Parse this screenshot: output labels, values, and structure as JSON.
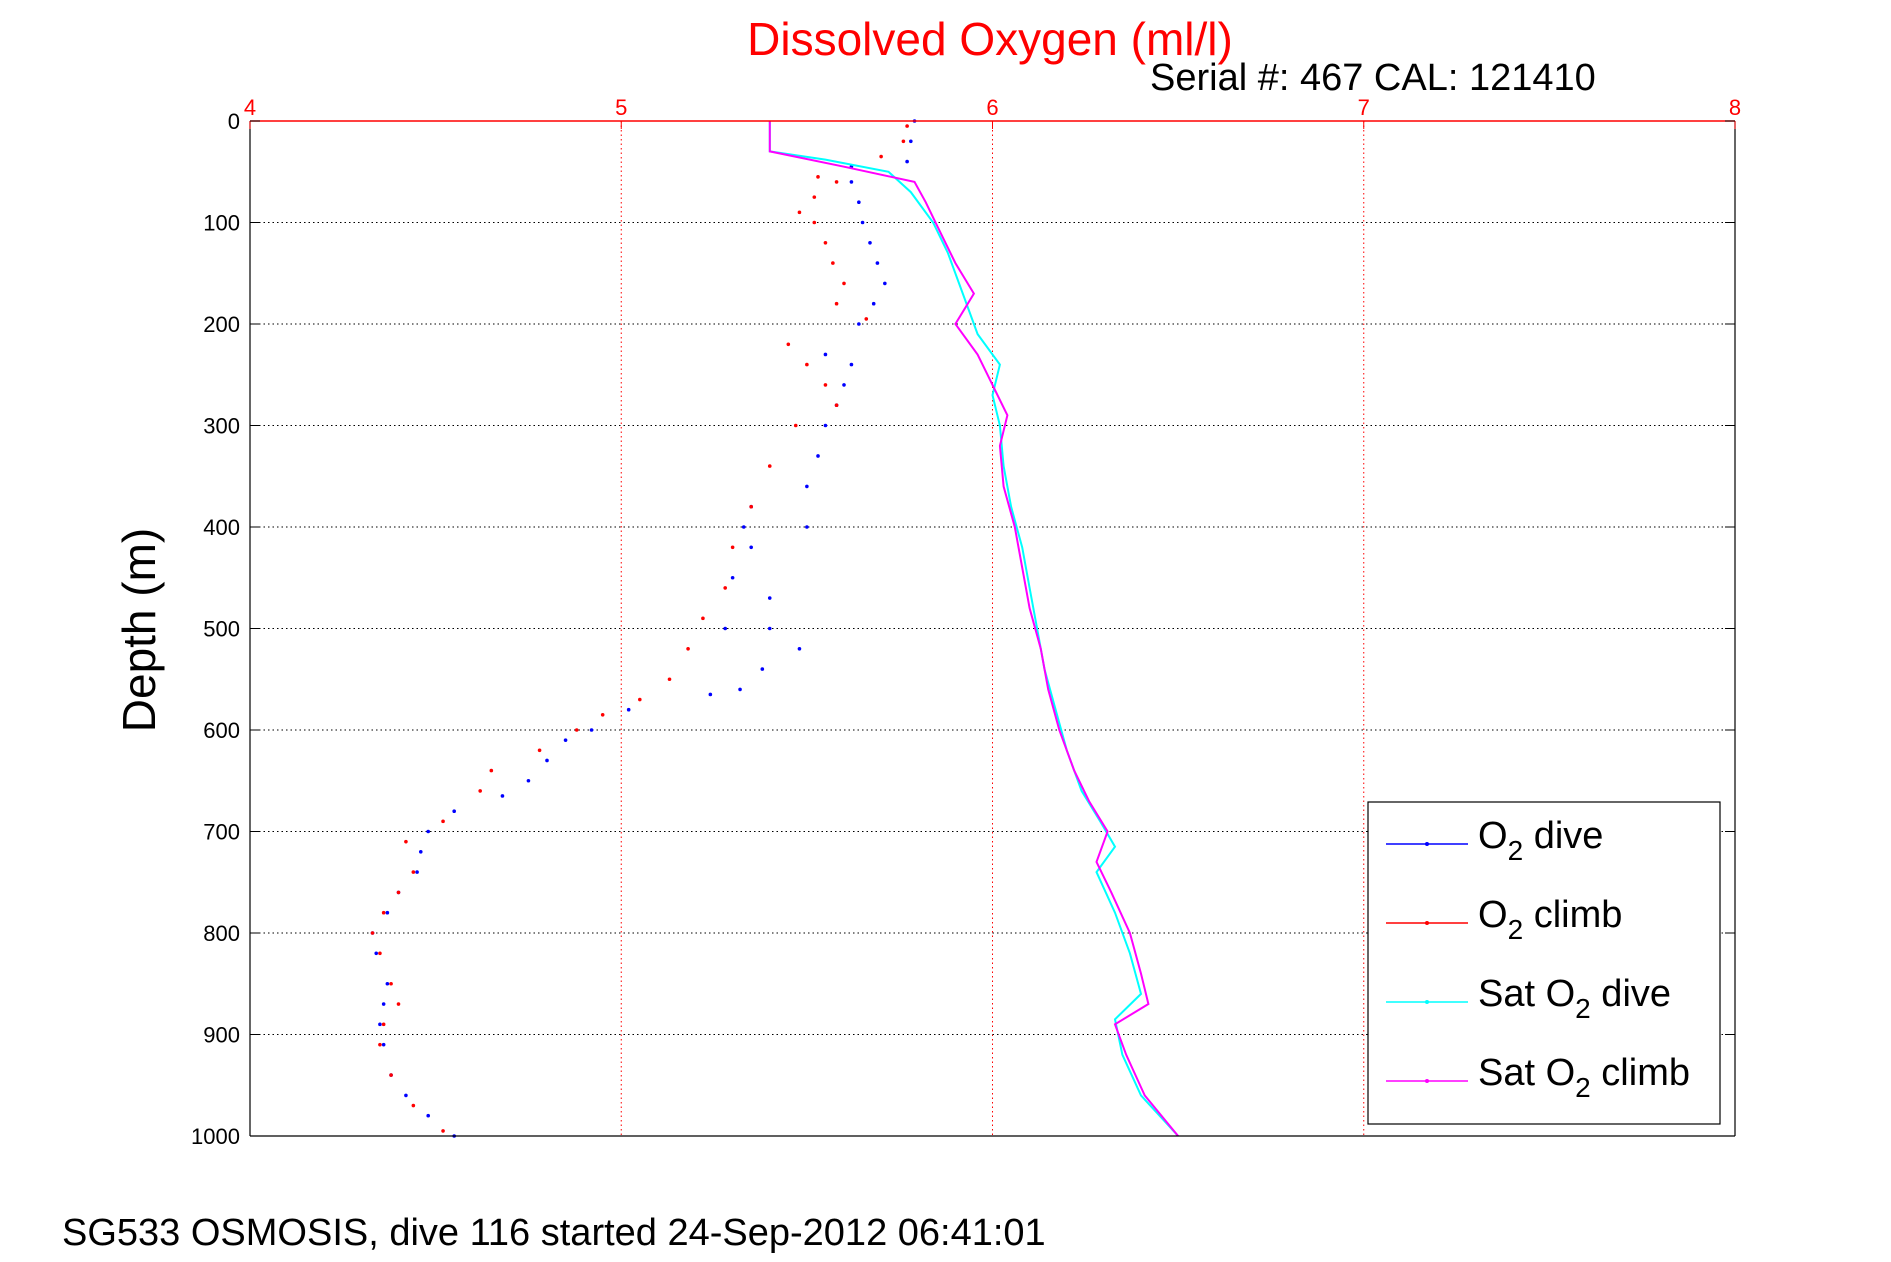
{
  "footer": "SG533 OSMOSIS, dive 116 started 24-Sep-2012 06:41:01",
  "chart_data": {
    "type": "scatter",
    "title": "Dissolved Oxygen (ml/l)",
    "subtitle": "Serial #: 467  CAL: 121410",
    "xlabel": "",
    "ylabel": "Depth (m)",
    "xlim": [
      4,
      8
    ],
    "ylim": [
      0,
      1000
    ],
    "y_reversed": true,
    "x_axis_position": "top",
    "xticks": [
      4,
      5,
      6,
      7,
      8
    ],
    "yticks": [
      0,
      100,
      200,
      300,
      400,
      500,
      600,
      700,
      800,
      900,
      1000
    ],
    "grid": true,
    "legend_position": "bottom-right",
    "colors": {
      "axis_top": "#ff0000",
      "grid_x": "#ff0000",
      "grid_y": "#000000"
    },
    "series": [
      {
        "name": "O2 dive",
        "color": "#0000ff",
        "style": "points",
        "points": [
          [
            5.79,
            0
          ],
          [
            5.78,
            20
          ],
          [
            5.77,
            40
          ],
          [
            5.62,
            45
          ],
          [
            5.62,
            60
          ],
          [
            5.64,
            80
          ],
          [
            5.65,
            100
          ],
          [
            5.67,
            120
          ],
          [
            5.69,
            140
          ],
          [
            5.71,
            160
          ],
          [
            5.68,
            180
          ],
          [
            5.64,
            200
          ],
          [
            5.55,
            230
          ],
          [
            5.62,
            240
          ],
          [
            5.6,
            260
          ],
          [
            5.58,
            280
          ],
          [
            5.55,
            300
          ],
          [
            5.53,
            330
          ],
          [
            5.5,
            360
          ],
          [
            5.35,
            380
          ],
          [
            5.33,
            400
          ],
          [
            5.5,
            400
          ],
          [
            5.35,
            420
          ],
          [
            5.3,
            450
          ],
          [
            5.4,
            470
          ],
          [
            5.28,
            500
          ],
          [
            5.4,
            500
          ],
          [
            5.48,
            520
          ],
          [
            5.38,
            540
          ],
          [
            5.32,
            560
          ],
          [
            5.24,
            565
          ],
          [
            5.02,
            580
          ],
          [
            4.92,
            600
          ],
          [
            4.85,
            610
          ],
          [
            4.8,
            630
          ],
          [
            4.75,
            650
          ],
          [
            4.68,
            665
          ],
          [
            4.55,
            680
          ],
          [
            4.48,
            700
          ],
          [
            4.46,
            720
          ],
          [
            4.45,
            740
          ],
          [
            4.4,
            760
          ],
          [
            4.37,
            780
          ],
          [
            4.33,
            800
          ],
          [
            4.34,
            820
          ],
          [
            4.37,
            850
          ],
          [
            4.36,
            870
          ],
          [
            4.35,
            890
          ],
          [
            4.36,
            910
          ],
          [
            4.38,
            940
          ],
          [
            4.42,
            960
          ],
          [
            4.48,
            980
          ],
          [
            4.55,
            1000
          ]
        ]
      },
      {
        "name": "O2 climb",
        "color": "#ff0000",
        "style": "points",
        "points": [
          [
            5.77,
            5
          ],
          [
            5.76,
            20
          ],
          [
            5.7,
            35
          ],
          [
            5.53,
            55
          ],
          [
            5.58,
            60
          ],
          [
            5.52,
            75
          ],
          [
            5.48,
            90
          ],
          [
            5.52,
            100
          ],
          [
            5.55,
            120
          ],
          [
            5.57,
            140
          ],
          [
            5.6,
            160
          ],
          [
            5.58,
            180
          ],
          [
            5.66,
            195
          ],
          [
            5.45,
            220
          ],
          [
            5.5,
            240
          ],
          [
            5.55,
            260
          ],
          [
            5.58,
            280
          ],
          [
            5.47,
            300
          ],
          [
            5.4,
            340
          ],
          [
            5.35,
            380
          ],
          [
            5.3,
            420
          ],
          [
            5.28,
            460
          ],
          [
            5.22,
            490
          ],
          [
            5.18,
            520
          ],
          [
            5.13,
            550
          ],
          [
            5.05,
            570
          ],
          [
            4.95,
            585
          ],
          [
            4.88,
            600
          ],
          [
            4.78,
            620
          ],
          [
            4.65,
            640
          ],
          [
            4.62,
            660
          ],
          [
            4.52,
            690
          ],
          [
            4.42,
            710
          ],
          [
            4.44,
            740
          ],
          [
            4.4,
            760
          ],
          [
            4.36,
            780
          ],
          [
            4.33,
            800
          ],
          [
            4.35,
            820
          ],
          [
            4.38,
            850
          ],
          [
            4.4,
            870
          ],
          [
            4.36,
            890
          ],
          [
            4.35,
            910
          ],
          [
            4.38,
            940
          ],
          [
            4.44,
            970
          ],
          [
            4.52,
            995
          ]
        ]
      },
      {
        "name": "Sat O2 dive",
        "color": "#00ffff",
        "style": "line",
        "points": [
          [
            5.4,
            0
          ],
          [
            5.4,
            30
          ],
          [
            5.55,
            38
          ],
          [
            5.72,
            50
          ],
          [
            5.78,
            70
          ],
          [
            5.84,
            100
          ],
          [
            5.88,
            130
          ],
          [
            5.92,
            170
          ],
          [
            5.94,
            190
          ],
          [
            5.96,
            210
          ],
          [
            6.02,
            240
          ],
          [
            6.0,
            270
          ],
          [
            6.02,
            300
          ],
          [
            6.03,
            340
          ],
          [
            6.05,
            380
          ],
          [
            6.08,
            420
          ],
          [
            6.1,
            460
          ],
          [
            6.12,
            500
          ],
          [
            6.14,
            540
          ],
          [
            6.17,
            580
          ],
          [
            6.2,
            620
          ],
          [
            6.24,
            660
          ],
          [
            6.29,
            690
          ],
          [
            6.33,
            715
          ],
          [
            6.28,
            740
          ],
          [
            6.33,
            780
          ],
          [
            6.37,
            820
          ],
          [
            6.4,
            860
          ],
          [
            6.33,
            885
          ],
          [
            6.35,
            920
          ],
          [
            6.4,
            960
          ],
          [
            6.5,
            1000
          ]
        ]
      },
      {
        "name": "Sat O2 climb",
        "color": "#ff00ff",
        "style": "line",
        "points": [
          [
            5.4,
            0
          ],
          [
            5.4,
            30
          ],
          [
            5.6,
            45
          ],
          [
            5.79,
            60
          ],
          [
            5.82,
            80
          ],
          [
            5.86,
            110
          ],
          [
            5.9,
            140
          ],
          [
            5.95,
            170
          ],
          [
            5.9,
            200
          ],
          [
            5.96,
            230
          ],
          [
            6.0,
            260
          ],
          [
            6.04,
            290
          ],
          [
            6.02,
            320
          ],
          [
            6.03,
            360
          ],
          [
            6.06,
            400
          ],
          [
            6.08,
            440
          ],
          [
            6.1,
            480
          ],
          [
            6.13,
            520
          ],
          [
            6.15,
            560
          ],
          [
            6.18,
            600
          ],
          [
            6.22,
            640
          ],
          [
            6.26,
            670
          ],
          [
            6.31,
            700
          ],
          [
            6.28,
            730
          ],
          [
            6.32,
            760
          ],
          [
            6.37,
            800
          ],
          [
            6.4,
            840
          ],
          [
            6.42,
            870
          ],
          [
            6.33,
            890
          ],
          [
            6.36,
            920
          ],
          [
            6.41,
            960
          ],
          [
            6.5,
            1000
          ]
        ]
      }
    ]
  }
}
